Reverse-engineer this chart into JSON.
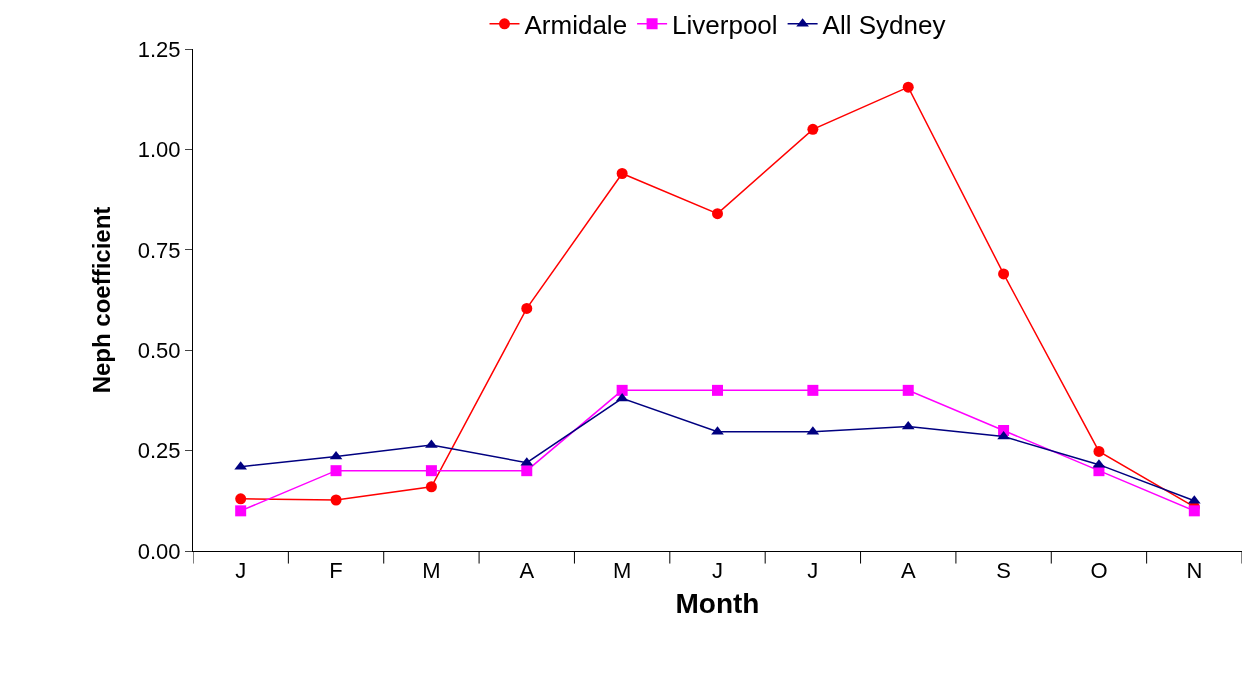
{
  "chart_data": {
    "type": "line",
    "xlabel": "Month",
    "ylabel": "Neph coefficient",
    "categories": [
      "J",
      "F",
      "M",
      "A",
      "M",
      "J",
      "J",
      "A",
      "S",
      "O",
      "N"
    ],
    "series": [
      {
        "name": "Armidale",
        "color": "#ff0000",
        "marker": "circle",
        "values": [
          0.13,
          0.127,
          0.16,
          0.604,
          0.94,
          0.84,
          1.05,
          1.155,
          0.69,
          0.248,
          0.11
        ]
      },
      {
        "name": "Liverpool",
        "color": "#ff00ff",
        "marker": "square",
        "values": [
          0.1,
          0.2,
          0.2,
          0.2,
          0.4,
          0.4,
          0.4,
          0.4,
          0.3,
          0.2,
          0.1
        ]
      },
      {
        "name": "All Sydney",
        "color": "#000080",
        "marker": "triangle",
        "values": [
          0.21,
          0.235,
          0.264,
          0.22,
          0.38,
          0.297,
          0.297,
          0.31,
          0.285,
          0.215,
          0.125
        ]
      }
    ],
    "ylim": [
      0,
      1.25
    ],
    "yticks": [
      {
        "value": 0,
        "label": "0.00"
      },
      {
        "value": 0.25,
        "label": "0.25"
      },
      {
        "value": 0.5,
        "label": "0.50"
      },
      {
        "value": 0.75,
        "label": "0.75"
      },
      {
        "value": 1,
        "label": "1.00"
      },
      {
        "value": 1.25,
        "label": "1.25"
      }
    ],
    "legend": "top",
    "line_style": "solid"
  }
}
